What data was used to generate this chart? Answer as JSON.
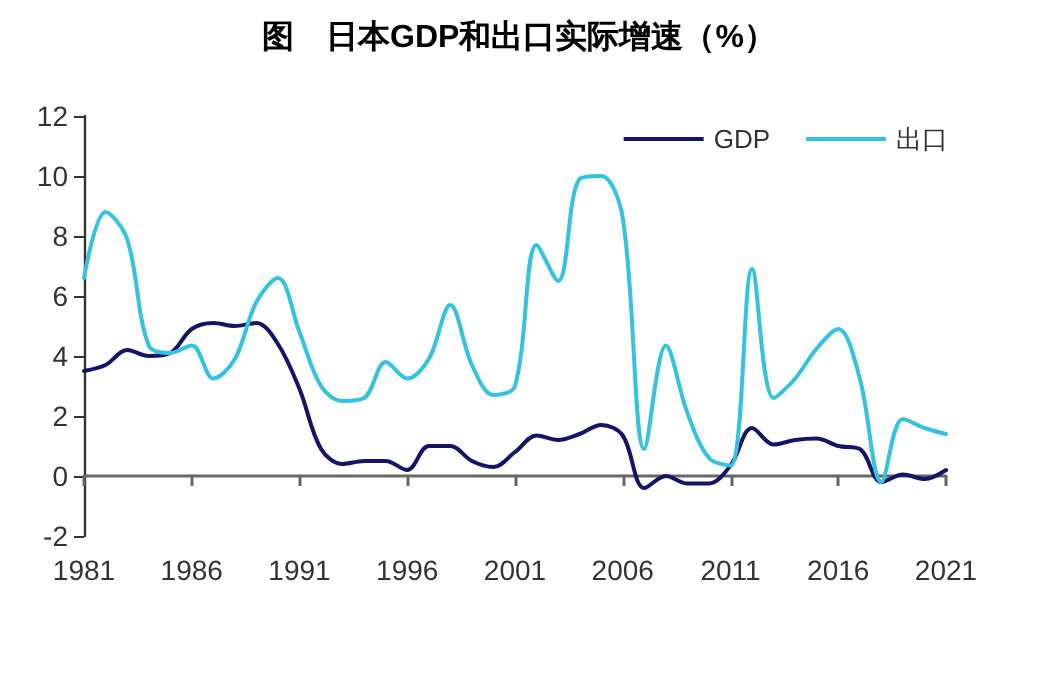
{
  "chart_data": {
    "type": "line",
    "title": "图　日本GDP和出口实际增速（%）",
    "x": [
      1981,
      1982,
      1983,
      1984,
      1985,
      1986,
      1987,
      1988,
      1989,
      1990,
      1991,
      1992,
      1993,
      1994,
      1995,
      1996,
      1997,
      1998,
      1999,
      2000,
      2001,
      2002,
      2003,
      2004,
      2005,
      2006,
      2007,
      2008,
      2009,
      2010,
      2011,
      2012,
      2013,
      2014,
      2015,
      2016,
      2017,
      2018,
      2019,
      2020,
      2021
    ],
    "series": [
      {
        "name": "GDP",
        "color": "#14146b",
        "values": [
          3.5,
          3.7,
          4.2,
          4.0,
          4.1,
          4.9,
          5.1,
          5.0,
          5.1,
          4.4,
          2.9,
          0.9,
          0.4,
          0.5,
          0.5,
          0.2,
          1.0,
          1.0,
          0.5,
          0.3,
          0.8,
          1.35,
          1.2,
          1.4,
          1.7,
          1.35,
          -0.4,
          0,
          -0.25,
          -0.25,
          0.35,
          1.6,
          1.05,
          1.2,
          1.25,
          1.0,
          0.9,
          -0.2,
          0.05,
          -0.1,
          0.2
        ]
      },
      {
        "name": "出口",
        "color": "#33c3e0",
        "values": [
          6.6,
          8.8,
          7.9,
          4.35,
          4.1,
          4.35,
          3.25,
          3.9,
          5.8,
          6.6,
          4.8,
          3.0,
          2.5,
          2.6,
          3.8,
          3.25,
          3.9,
          5.7,
          3.7,
          2.7,
          3.0,
          7.7,
          6.5,
          9.9,
          10.0,
          8.6,
          0.9,
          4.35,
          2.1,
          0.6,
          0.35,
          6.9,
          2.6,
          3.25,
          4.25,
          4.9,
          3.25,
          -0.2,
          1.9,
          1.6,
          1.4
        ]
      }
    ],
    "xlim": [
      1981,
      2021
    ],
    "xticks": [
      1981,
      1986,
      1991,
      1996,
      2001,
      2006,
      2011,
      2016,
      2021
    ],
    "ylim": [
      -2,
      12
    ],
    "yticks": [
      -2,
      0,
      2,
      4,
      6,
      8,
      10,
      12
    ],
    "legend": "top right",
    "marker": "none",
    "line_style": "solid"
  }
}
